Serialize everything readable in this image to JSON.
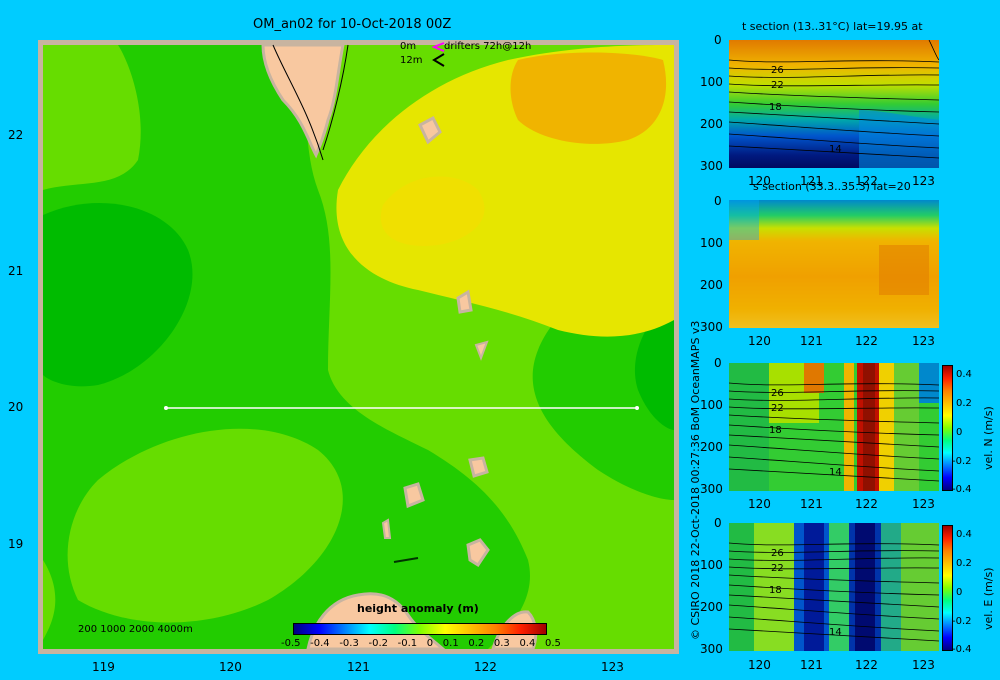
{
  "map": {
    "title": "OM_an02 for 10-Oct-2018 00Z",
    "legend_line1": "0m",
    "legend_line1_label": "drifters 72h@12h",
    "legend_line2": "12m",
    "depth_contours_label": "200  1000  2000  4000m",
    "lat_ticks": [
      "22",
      "21",
      "20",
      "19"
    ],
    "lon_ticks": [
      "119",
      "120",
      "121",
      "122",
      "123"
    ],
    "section_line": {
      "lon_start": 119.5,
      "lon_end": 123.2,
      "lat": 20
    },
    "colorbar": {
      "title": "height anomaly (m)",
      "ticks": [
        "-0.5",
        "-0.4",
        "-0.3",
        "-0.2",
        "-0.1",
        "0",
        "0.1",
        "0.2",
        "0.3",
        "0.4",
        "0.5"
      ],
      "range": [
        -0.5,
        0.5
      ]
    }
  },
  "panels": {
    "p1_title": "t section (13..31°C) lat=19.95 at",
    "p2_title": "s section (33.3..35.3) lat=20",
    "depth_ticks": [
      "0",
      "100",
      "200",
      "300"
    ],
    "lon_ticks": [
      "120",
      "121",
      "122",
      "123"
    ],
    "contour_labels_p1": [
      "26",
      "22",
      "18",
      "14"
    ],
    "contour_labels_p3": [
      "26",
      "22",
      "18",
      "14"
    ],
    "contour_labels_p4": [
      "26",
      "22",
      "18",
      "14"
    ],
    "vel_n_label": "vel. N (m/s)",
    "vel_e_label": "vel. E (m/s)",
    "vel_ticks": [
      "0.4",
      "0.2",
      "0",
      "-0.2",
      "-0.4"
    ]
  },
  "credit": "© CSIRO 2018   22-Oct-2018 00:27:36 BoM OceanMAPS v3",
  "colors": {
    "background": "#00ccff",
    "frame": "#c8b4a0",
    "land": "#f8c8a0",
    "green_dark": "#00bb00",
    "green_mid": "#22cc00",
    "green_light": "#66dd00",
    "yellow": "#e6e600",
    "orange": "#f0b400",
    "section_line": "#ffffff"
  }
}
